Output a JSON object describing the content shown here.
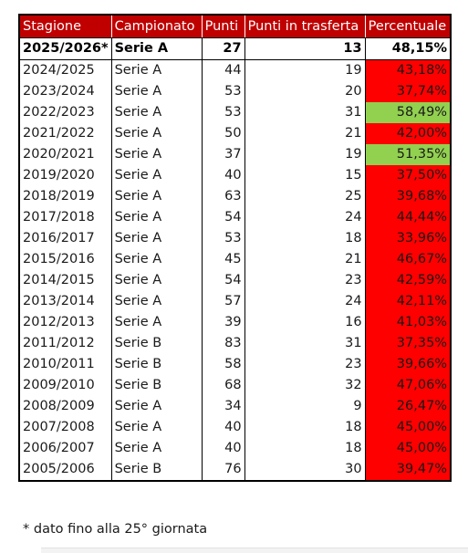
{
  "table": {
    "headers": {
      "stagione": "Stagione",
      "campionato": "Campionato",
      "punti": "Punti",
      "trasferta": "Punti in trasferta",
      "percentuale": "Percentuale"
    },
    "rows": [
      {
        "stagione": "2025/2026*",
        "campionato": "Serie A",
        "punti": "27",
        "trasferta": "13",
        "percentuale": "48,15%",
        "highlight": "none",
        "current": true
      },
      {
        "stagione": "2024/2025",
        "campionato": "Serie A",
        "punti": "44",
        "trasferta": "19",
        "percentuale": "43,18%",
        "highlight": "red"
      },
      {
        "stagione": "2023/2024",
        "campionato": "Serie A",
        "punti": "53",
        "trasferta": "20",
        "percentuale": "37,74%",
        "highlight": "red"
      },
      {
        "stagione": "2022/2023",
        "campionato": "Serie A",
        "punti": "53",
        "trasferta": "31",
        "percentuale": "58,49%",
        "highlight": "green"
      },
      {
        "stagione": "2021/2022",
        "campionato": "Serie A",
        "punti": "50",
        "trasferta": "21",
        "percentuale": "42,00%",
        "highlight": "red"
      },
      {
        "stagione": "2020/2021",
        "campionato": "Serie A",
        "punti": "37",
        "trasferta": "19",
        "percentuale": "51,35%",
        "highlight": "green"
      },
      {
        "stagione": "2019/2020",
        "campionato": "Serie A",
        "punti": "40",
        "trasferta": "15",
        "percentuale": "37,50%",
        "highlight": "red"
      },
      {
        "stagione": "2018/2019",
        "campionato": "Serie A",
        "punti": "63",
        "trasferta": "25",
        "percentuale": "39,68%",
        "highlight": "red"
      },
      {
        "stagione": "2017/2018",
        "campionato": "Serie A",
        "punti": "54",
        "trasferta": "24",
        "percentuale": "44,44%",
        "highlight": "red"
      },
      {
        "stagione": "2016/2017",
        "campionato": "Serie A",
        "punti": "53",
        "trasferta": "18",
        "percentuale": "33,96%",
        "highlight": "red"
      },
      {
        "stagione": "2015/2016",
        "campionato": "Serie A",
        "punti": "45",
        "trasferta": "21",
        "percentuale": "46,67%",
        "highlight": "red"
      },
      {
        "stagione": "2014/2015",
        "campionato": "Serie A",
        "punti": "54",
        "trasferta": "23",
        "percentuale": "42,59%",
        "highlight": "red"
      },
      {
        "stagione": "2013/2014",
        "campionato": "Serie A",
        "punti": "57",
        "trasferta": "24",
        "percentuale": "42,11%",
        "highlight": "red"
      },
      {
        "stagione": "2012/2013",
        "campionato": "Serie A",
        "punti": "39",
        "trasferta": "16",
        "percentuale": "41,03%",
        "highlight": "red"
      },
      {
        "stagione": "2011/2012",
        "campionato": "Serie B",
        "punti": "83",
        "trasferta": "31",
        "percentuale": "37,35%",
        "highlight": "red"
      },
      {
        "stagione": "2010/2011",
        "campionato": "Serie B",
        "punti": "58",
        "trasferta": "23",
        "percentuale": "39,66%",
        "highlight": "red"
      },
      {
        "stagione": "2009/2010",
        "campionato": "Serie B",
        "punti": "68",
        "trasferta": "32",
        "percentuale": "47,06%",
        "highlight": "red"
      },
      {
        "stagione": "2008/2009",
        "campionato": "Serie A",
        "punti": "34",
        "trasferta": "9",
        "percentuale": "26,47%",
        "highlight": "red"
      },
      {
        "stagione": "2007/2008",
        "campionato": "Serie A",
        "punti": "40",
        "trasferta": "18",
        "percentuale": "45,00%",
        "highlight": "red"
      },
      {
        "stagione": "2006/2007",
        "campionato": "Serie A",
        "punti": "40",
        "trasferta": "18",
        "percentuale": "45,00%",
        "highlight": "red"
      },
      {
        "stagione": "2005/2006",
        "campionato": "Serie B",
        "punti": "76",
        "trasferta": "30",
        "percentuale": "39,47%",
        "highlight": "red"
      }
    ]
  },
  "footnote": "* dato fino alla 25° giornata",
  "colors": {
    "header_bg": "#c00000",
    "header_text": "#ffffff",
    "highlight_red": "#ff0000",
    "highlight_green": "#92d050"
  }
}
